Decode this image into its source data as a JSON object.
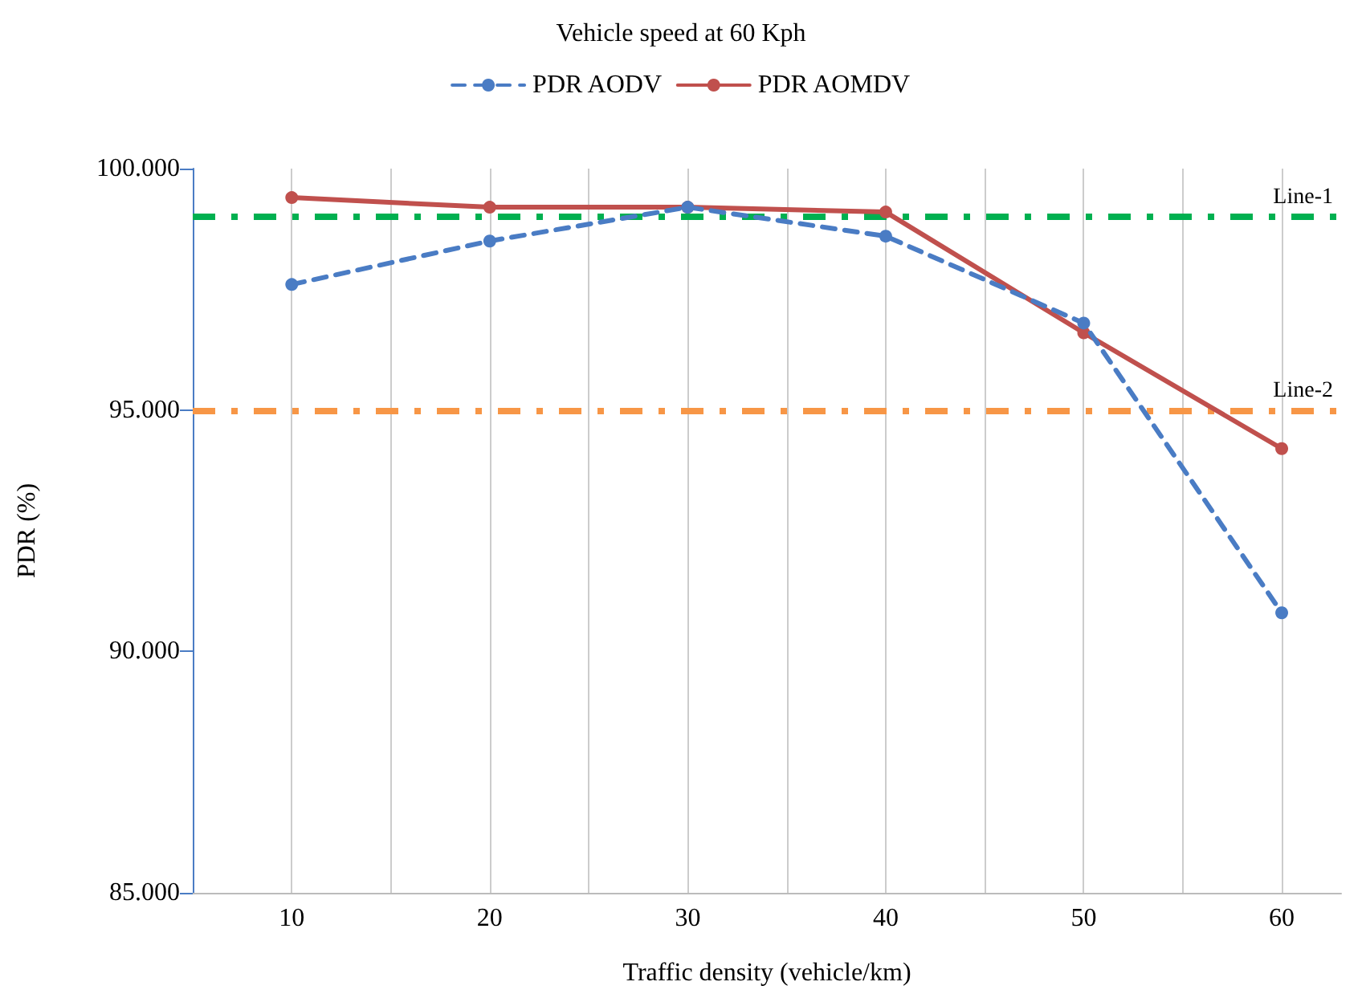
{
  "chart_data": {
    "type": "line",
    "title": "Vehicle speed at 60 Kph",
    "xlabel": "Traffic density (vehicle/km)",
    "ylabel": "PDR (%)",
    "x": [
      10,
      20,
      30,
      40,
      50,
      60
    ],
    "series": [
      {
        "name": "PDR AODV",
        "color": "#4a7cc4",
        "line_style": "dashed",
        "values": [
          97.6,
          98.5,
          99.2,
          98.6,
          96.8,
          90.8
        ]
      },
      {
        "name": "PDR AOMDV",
        "color": "#c0504d",
        "line_style": "solid",
        "values": [
          99.4,
          99.2,
          99.2,
          99.1,
          96.6,
          94.2
        ]
      }
    ],
    "xlim": [
      5,
      63
    ],
    "xticks": [
      10,
      {
        "value": 15,
        "label": null
      },
      20,
      {
        "value": 25,
        "label": null
      },
      30,
      {
        "value": 35,
        "label": null
      },
      40,
      {
        "value": 45,
        "label": null
      },
      50,
      {
        "value": 55,
        "label": null
      },
      60
    ],
    "ylim": [
      85,
      100
    ],
    "yticks": [
      {
        "value": 85,
        "label": "85.000"
      },
      {
        "value": 90,
        "label": "90.000"
      },
      {
        "value": 95,
        "label": "95.000"
      },
      {
        "value": 100,
        "label": "100.000"
      }
    ],
    "ref_lines": [
      {
        "axis": "y",
        "value": 99,
        "label": "Line-1",
        "color": "#00b050",
        "line_style": "dashed"
      },
      {
        "axis": "y",
        "value": 95,
        "label": "Line-2",
        "color": "#f79646",
        "line_style": "dashed"
      }
    ],
    "grid": "x",
    "legend": "top",
    "marker": "circle"
  }
}
